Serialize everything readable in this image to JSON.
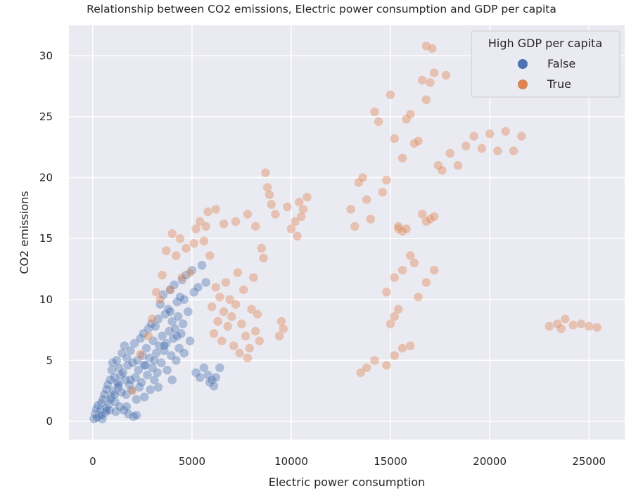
{
  "chart_data": {
    "type": "scatter",
    "title": "Relationship between CO2 emissions, Electric power consumption and GDP per capita",
    "xlabel": "Electric power consumption",
    "ylabel": "CO2 emissions",
    "xlim": [
      -1200,
      26800
    ],
    "ylim": [
      -1.5,
      32.5
    ],
    "xticks": [
      0,
      5000,
      10000,
      15000,
      20000,
      25000
    ],
    "yticks": [
      0,
      5,
      10,
      15,
      20,
      25,
      30
    ],
    "grid": true,
    "legend": {
      "title": "High GDP per capita",
      "placement": "top-right"
    },
    "series": [
      {
        "name": "False",
        "color": "#4c72b0",
        "points": [
          [
            60,
            0.2
          ],
          [
            120,
            0.6
          ],
          [
            180,
            1.0
          ],
          [
            260,
            1.3
          ],
          [
            320,
            0.4
          ],
          [
            380,
            0.9
          ],
          [
            420,
            1.5
          ],
          [
            480,
            0.2
          ],
          [
            520,
            1.8
          ],
          [
            580,
            2.2
          ],
          [
            620,
            0.7
          ],
          [
            660,
            1.1
          ],
          [
            700,
            2.6
          ],
          [
            760,
            3.0
          ],
          [
            800,
            1.4
          ],
          [
            840,
            0.9
          ],
          [
            880,
            3.4
          ],
          [
            920,
            2.0
          ],
          [
            960,
            4.2
          ],
          [
            1000,
            4.8
          ],
          [
            1040,
            2.5
          ],
          [
            1080,
            3.6
          ],
          [
            1120,
            1.6
          ],
          [
            1160,
            0.8
          ],
          [
            1200,
            5.0
          ],
          [
            1240,
            3.2
          ],
          [
            1280,
            2.8
          ],
          [
            1320,
            4.4
          ],
          [
            1360,
            1.2
          ],
          [
            1400,
            3.8
          ],
          [
            1440,
            2.4
          ],
          [
            1480,
            5.6
          ],
          [
            1520,
            4.0
          ],
          [
            1560,
            0.9
          ],
          [
            1600,
            6.2
          ],
          [
            1640,
            3.4
          ],
          [
            1680,
            2.2
          ],
          [
            1720,
            5.2
          ],
          [
            1760,
            4.6
          ],
          [
            1800,
            0.6
          ],
          [
            1850,
            3.0
          ],
          [
            1900,
            5.8
          ],
          [
            1950,
            2.6
          ],
          [
            2000,
            4.8
          ],
          [
            2050,
            0.4
          ],
          [
            2100,
            6.4
          ],
          [
            2150,
            3.6
          ],
          [
            2200,
            1.8
          ],
          [
            2250,
            5.0
          ],
          [
            2300,
            4.2
          ],
          [
            2350,
            2.8
          ],
          [
            2400,
            6.8
          ],
          [
            2450,
            3.2
          ],
          [
            2500,
            5.4
          ],
          [
            2550,
            7.2
          ],
          [
            2600,
            2.0
          ],
          [
            2650,
            4.6
          ],
          [
            2700,
            6.0
          ],
          [
            2750,
            3.8
          ],
          [
            2800,
            7.6
          ],
          [
            2850,
            5.2
          ],
          [
            2900,
            2.6
          ],
          [
            2950,
            8.0
          ],
          [
            3000,
            4.4
          ],
          [
            3050,
            6.6
          ],
          [
            3100,
            3.4
          ],
          [
            3150,
            7.8
          ],
          [
            3200,
            5.6
          ],
          [
            3250,
            4.0
          ],
          [
            3300,
            8.4
          ],
          [
            3350,
            6.2
          ],
          [
            3400,
            9.6
          ],
          [
            3450,
            4.8
          ],
          [
            3500,
            7.0
          ],
          [
            3550,
            10.4
          ],
          [
            3600,
            5.8
          ],
          [
            3650,
            8.8
          ],
          [
            3700,
            6.4
          ],
          [
            3750,
            4.2
          ],
          [
            3800,
            9.2
          ],
          [
            3850,
            7.4
          ],
          [
            3900,
            10.8
          ],
          [
            3950,
            5.4
          ],
          [
            4000,
            8.2
          ],
          [
            4050,
            6.8
          ],
          [
            4100,
            11.2
          ],
          [
            4150,
            7.6
          ],
          [
            4200,
            5.0
          ],
          [
            4250,
            9.8
          ],
          [
            4300,
            8.6
          ],
          [
            4350,
            6.0
          ],
          [
            4400,
            10.2
          ],
          [
            4450,
            7.2
          ],
          [
            4500,
            11.6
          ],
          [
            4550,
            8.0
          ],
          [
            4600,
            5.6
          ],
          [
            4700,
            12.0
          ],
          [
            4800,
            9.0
          ],
          [
            4900,
            6.6
          ],
          [
            5000,
            12.4
          ],
          [
            5100,
            10.6
          ],
          [
            5200,
            4.0
          ],
          [
            5300,
            11.0
          ],
          [
            5400,
            3.6
          ],
          [
            5500,
            12.8
          ],
          [
            5600,
            4.4
          ],
          [
            5800,
            3.8
          ],
          [
            5900,
            3.2
          ],
          [
            6000,
            3.4
          ],
          [
            6100,
            2.9
          ],
          [
            6200,
            3.6
          ],
          [
            6400,
            4.4
          ],
          [
            5700,
            11.4
          ],
          [
            1300,
            3.0
          ],
          [
            900,
            1.8
          ],
          [
            700,
            0.9
          ],
          [
            2200,
            0.5
          ],
          [
            1700,
            1.2
          ],
          [
            3300,
            2.8
          ],
          [
            4000,
            3.4
          ],
          [
            200,
            0.3
          ],
          [
            450,
            0.5
          ],
          [
            1100,
            2.2
          ],
          [
            1900,
            3.4
          ],
          [
            2600,
            4.6
          ],
          [
            3100,
            5.0
          ],
          [
            3600,
            6.2
          ],
          [
            4250,
            7.0
          ],
          [
            3900,
            9.0
          ],
          [
            4600,
            10.0
          ]
        ]
      },
      {
        "name": "True",
        "color": "#dd8452",
        "points": [
          [
            2000,
            2.5
          ],
          [
            2400,
            5.5
          ],
          [
            2800,
            7.0
          ],
          [
            3200,
            10.6
          ],
          [
            3500,
            12.0
          ],
          [
            3700,
            14.0
          ],
          [
            4000,
            15.4
          ],
          [
            4200,
            13.6
          ],
          [
            4400,
            15.0
          ],
          [
            4700,
            14.2
          ],
          [
            4900,
            12.2
          ],
          [
            5200,
            15.8
          ],
          [
            5400,
            16.4
          ],
          [
            5600,
            14.8
          ],
          [
            5800,
            17.2
          ],
          [
            5900,
            13.6
          ],
          [
            6000,
            9.4
          ],
          [
            6100,
            7.2
          ],
          [
            6200,
            11.0
          ],
          [
            6300,
            8.2
          ],
          [
            6400,
            10.2
          ],
          [
            6500,
            6.6
          ],
          [
            6600,
            9.0
          ],
          [
            6700,
            11.4
          ],
          [
            6800,
            7.8
          ],
          [
            6900,
            10.0
          ],
          [
            7000,
            8.6
          ],
          [
            7100,
            6.2
          ],
          [
            7200,
            9.6
          ],
          [
            7300,
            12.2
          ],
          [
            7400,
            5.6
          ],
          [
            7500,
            8.0
          ],
          [
            7600,
            10.8
          ],
          [
            7700,
            7.0
          ],
          [
            7800,
            5.2
          ],
          [
            7900,
            6.0
          ],
          [
            8000,
            9.2
          ],
          [
            8100,
            11.8
          ],
          [
            8200,
            7.4
          ],
          [
            8300,
            8.8
          ],
          [
            8400,
            6.6
          ],
          [
            8500,
            14.2
          ],
          [
            8600,
            13.4
          ],
          [
            8700,
            20.4
          ],
          [
            8800,
            19.2
          ],
          [
            8900,
            18.6
          ],
          [
            9000,
            17.8
          ],
          [
            9200,
            17.0
          ],
          [
            9400,
            7.0
          ],
          [
            9500,
            8.2
          ],
          [
            9600,
            7.6
          ],
          [
            9800,
            17.6
          ],
          [
            10000,
            15.8
          ],
          [
            10200,
            16.4
          ],
          [
            10400,
            18.0
          ],
          [
            10600,
            17.4
          ],
          [
            10800,
            18.4
          ],
          [
            10500,
            16.8
          ],
          [
            10300,
            15.2
          ],
          [
            8200,
            16.0
          ],
          [
            7800,
            17.0
          ],
          [
            7200,
            16.4
          ],
          [
            6600,
            16.2
          ],
          [
            6200,
            17.4
          ],
          [
            5700,
            16.0
          ],
          [
            5100,
            14.6
          ],
          [
            4500,
            11.8
          ],
          [
            3900,
            10.8
          ],
          [
            3400,
            10.0
          ],
          [
            3000,
            8.4
          ],
          [
            13000,
            17.4
          ],
          [
            13200,
            16.0
          ],
          [
            13400,
            19.6
          ],
          [
            13600,
            20.0
          ],
          [
            13800,
            18.2
          ],
          [
            14000,
            16.6
          ],
          [
            14200,
            25.4
          ],
          [
            14400,
            24.6
          ],
          [
            14600,
            18.8
          ],
          [
            14800,
            19.8
          ],
          [
            15000,
            26.8
          ],
          [
            15200,
            23.2
          ],
          [
            15400,
            15.8
          ],
          [
            15600,
            21.6
          ],
          [
            15800,
            24.8
          ],
          [
            16000,
            25.2
          ],
          [
            16200,
            22.8
          ],
          [
            16400,
            23.0
          ],
          [
            16600,
            28.0
          ],
          [
            16800,
            26.4
          ],
          [
            17000,
            27.8
          ],
          [
            17200,
            28.6
          ],
          [
            17400,
            21.0
          ],
          [
            17600,
            20.6
          ],
          [
            17800,
            28.4
          ],
          [
            18000,
            22.0
          ],
          [
            18400,
            21.0
          ],
          [
            18800,
            22.6
          ],
          [
            19200,
            23.4
          ],
          [
            19600,
            22.4
          ],
          [
            20000,
            23.6
          ],
          [
            20400,
            22.2
          ],
          [
            20800,
            23.8
          ],
          [
            21200,
            22.2
          ],
          [
            21600,
            23.4
          ],
          [
            16800,
            30.8
          ],
          [
            17100,
            30.6
          ],
          [
            13500,
            4.0
          ],
          [
            13800,
            4.4
          ],
          [
            14200,
            5.0
          ],
          [
            14800,
            4.6
          ],
          [
            15200,
            5.4
          ],
          [
            15600,
            6.0
          ],
          [
            16000,
            6.2
          ],
          [
            14800,
            10.6
          ],
          [
            15200,
            11.8
          ],
          [
            15600,
            12.4
          ],
          [
            16000,
            13.6
          ],
          [
            16200,
            13.0
          ],
          [
            16400,
            10.2
          ],
          [
            16800,
            11.4
          ],
          [
            17200,
            12.4
          ],
          [
            16600,
            17.0
          ],
          [
            16800,
            16.4
          ],
          [
            17000,
            16.6
          ],
          [
            17200,
            16.8
          ],
          [
            15400,
            16.0
          ],
          [
            15600,
            15.6
          ],
          [
            15800,
            15.8
          ],
          [
            15000,
            8.0
          ],
          [
            15200,
            8.6
          ],
          [
            15400,
            9.2
          ],
          [
            23000,
            7.8
          ],
          [
            23400,
            8.0
          ],
          [
            23800,
            8.4
          ],
          [
            24200,
            7.9
          ],
          [
            24600,
            8.0
          ],
          [
            25000,
            7.8
          ],
          [
            25400,
            7.7
          ],
          [
            23600,
            7.6
          ]
        ]
      }
    ]
  }
}
